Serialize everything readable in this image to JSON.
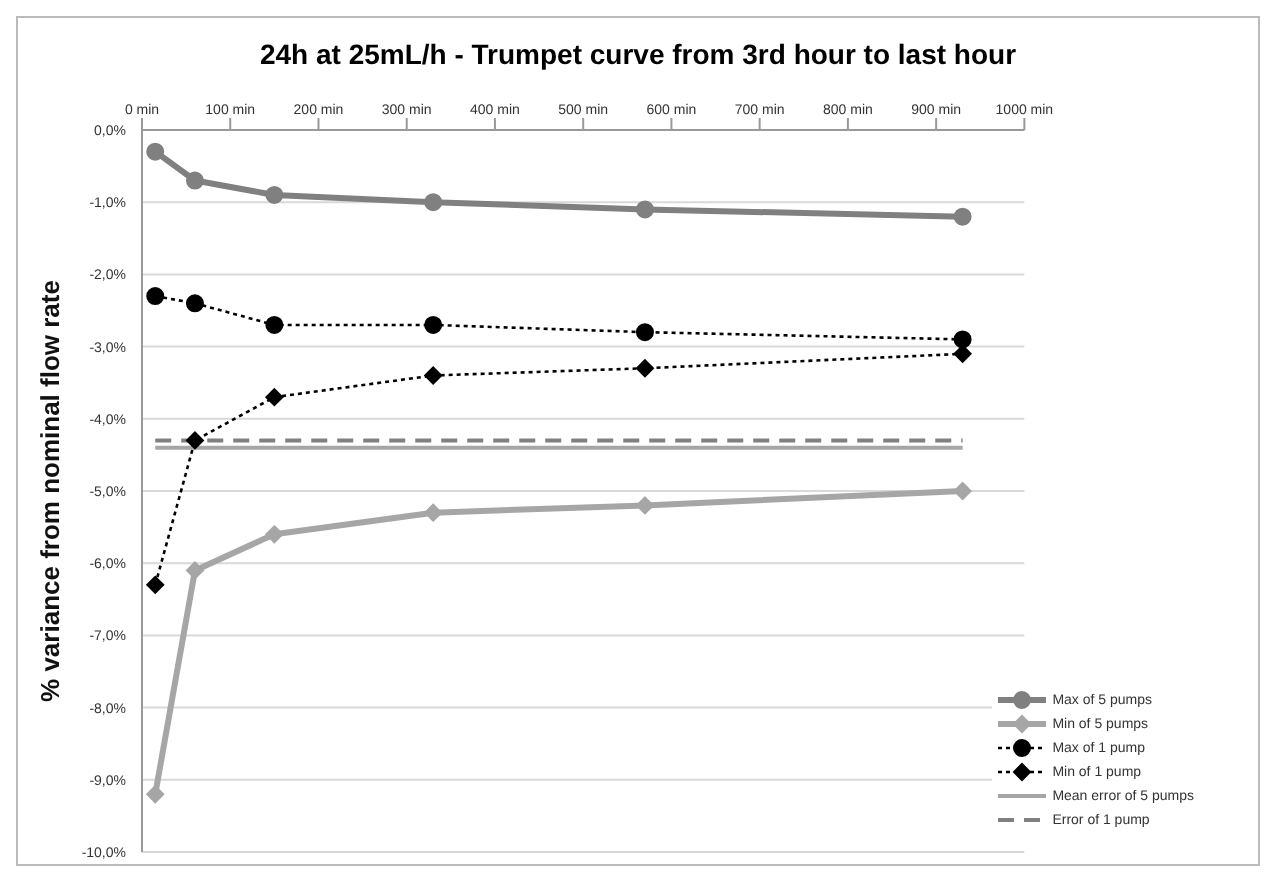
{
  "chart_data": {
    "type": "line",
    "title": "24h at 25mL/h   -   Trumpet curve from 3rd hour to last hour",
    "ylabel": "% variance from nominal  flow rate",
    "x": [
      15,
      60,
      150,
      330,
      570,
      930
    ],
    "series": [
      {
        "name": "Max of 5 pumps",
        "color": "#808080",
        "marker": "circle",
        "line_style": "solid",
        "values": [
          -0.3,
          -0.7,
          -0.9,
          -1.0,
          -1.1,
          -1.2
        ]
      },
      {
        "name": "Min of 5 pumps",
        "color": "#a6a6a6",
        "marker": "diamond",
        "line_style": "solid",
        "values": [
          -9.2,
          -6.1,
          -5.6,
          -5.3,
          -5.2,
          -5.0
        ]
      },
      {
        "name": "Max of 1 pump",
        "color": "#000000",
        "marker": "circle",
        "line_style": "dotted",
        "values": [
          -2.3,
          -2.4,
          -2.7,
          -2.7,
          -2.8,
          -2.9
        ]
      },
      {
        "name": "Min of 1 pump",
        "color": "#000000",
        "marker": "diamond",
        "line_style": "dotted",
        "values": [
          -6.3,
          -4.3,
          -3.7,
          -3.4,
          -3.3,
          -3.1
        ]
      },
      {
        "name": "Mean error of 5 pumps",
        "color": "#a6a6a6",
        "marker": "none",
        "line_style": "solid",
        "values": [
          -4.4,
          -4.4,
          -4.4,
          -4.4,
          -4.4,
          -4.4
        ]
      },
      {
        "name": "Error of 1 pump",
        "color": "#808080",
        "marker": "none",
        "line_style": "dashed",
        "values": [
          -4.3,
          -4.3,
          -4.3,
          -4.3,
          -4.3,
          -4.3
        ]
      }
    ],
    "xlim": [
      0,
      1000
    ],
    "xticks": [
      {
        "value": 0,
        "label": "0 min"
      },
      {
        "value": 100,
        "label": "100 min"
      },
      {
        "value": 200,
        "label": "200 min"
      },
      {
        "value": 300,
        "label": "300 min"
      },
      {
        "value": 400,
        "label": "400 min"
      },
      {
        "value": 500,
        "label": "500 min"
      },
      {
        "value": 600,
        "label": "600 min"
      },
      {
        "value": 700,
        "label": "700 min"
      },
      {
        "value": 800,
        "label": "800 min"
      },
      {
        "value": 900,
        "label": "900 min"
      },
      {
        "value": 1000,
        "label": "1000 min"
      }
    ],
    "ylim": [
      -10,
      0
    ],
    "yticks": [
      {
        "value": 0,
        "label": "0,0%"
      },
      {
        "value": -1,
        "label": "-1,0%"
      },
      {
        "value": -2,
        "label": "-2,0%"
      },
      {
        "value": -3,
        "label": "-3,0%"
      },
      {
        "value": -4,
        "label": "-4,0%"
      },
      {
        "value": -5,
        "label": "-5,0%"
      },
      {
        "value": -6,
        "label": "-6,0%"
      },
      {
        "value": -7,
        "label": "-7,0%"
      },
      {
        "value": -8,
        "label": "-8,0%"
      },
      {
        "value": -9,
        "label": "-9,0%"
      },
      {
        "value": -10,
        "label": "-10,0%"
      }
    ],
    "grid": "y",
    "legend": "bottom right"
  }
}
